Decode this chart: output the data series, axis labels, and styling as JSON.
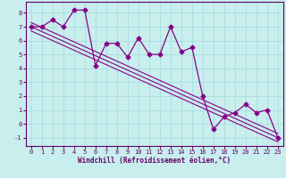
{
  "xlabel": "Windchill (Refroidissement éolien,°C)",
  "bg_color": "#c8eeee",
  "grid_color": "#aadddd",
  "line_color": "#880088",
  "spine_color": "#660066",
  "label_color": "#660066",
  "data_x": [
    0,
    1,
    2,
    3,
    4,
    5,
    6,
    7,
    8,
    9,
    10,
    11,
    12,
    13,
    14,
    15,
    16,
    17,
    18,
    19,
    20,
    21,
    22,
    23
  ],
  "data_y": [
    7.0,
    7.0,
    7.5,
    7.0,
    8.2,
    8.2,
    4.2,
    5.8,
    5.8,
    4.8,
    6.2,
    5.0,
    5.0,
    7.0,
    5.2,
    5.5,
    2.0,
    -0.4,
    0.5,
    0.8,
    1.4,
    0.8,
    1.0,
    -1.0
  ],
  "trend_lines": [
    {
      "x0": 0,
      "y0": 7.3,
      "x1": 23,
      "y1": -0.7
    },
    {
      "x0": 0,
      "y0": 7.0,
      "x1": 23,
      "y1": -1.0
    },
    {
      "x0": 0,
      "y0": 6.7,
      "x1": 23,
      "y1": -1.3
    }
  ],
  "xlim": [
    -0.5,
    23.5
  ],
  "ylim": [
    -1.6,
    8.8
  ],
  "xticks": [
    0,
    1,
    2,
    3,
    4,
    5,
    6,
    7,
    8,
    9,
    10,
    11,
    12,
    13,
    14,
    15,
    16,
    17,
    18,
    19,
    20,
    21,
    22,
    23
  ],
  "yticks": [
    -1,
    0,
    1,
    2,
    3,
    4,
    5,
    6,
    7,
    8
  ],
  "tick_fontsize": 5.0,
  "xlabel_fontsize": 5.5,
  "marker": "D",
  "markersize": 2.5,
  "linewidth": 0.9,
  "trend_linewidth": 0.8
}
